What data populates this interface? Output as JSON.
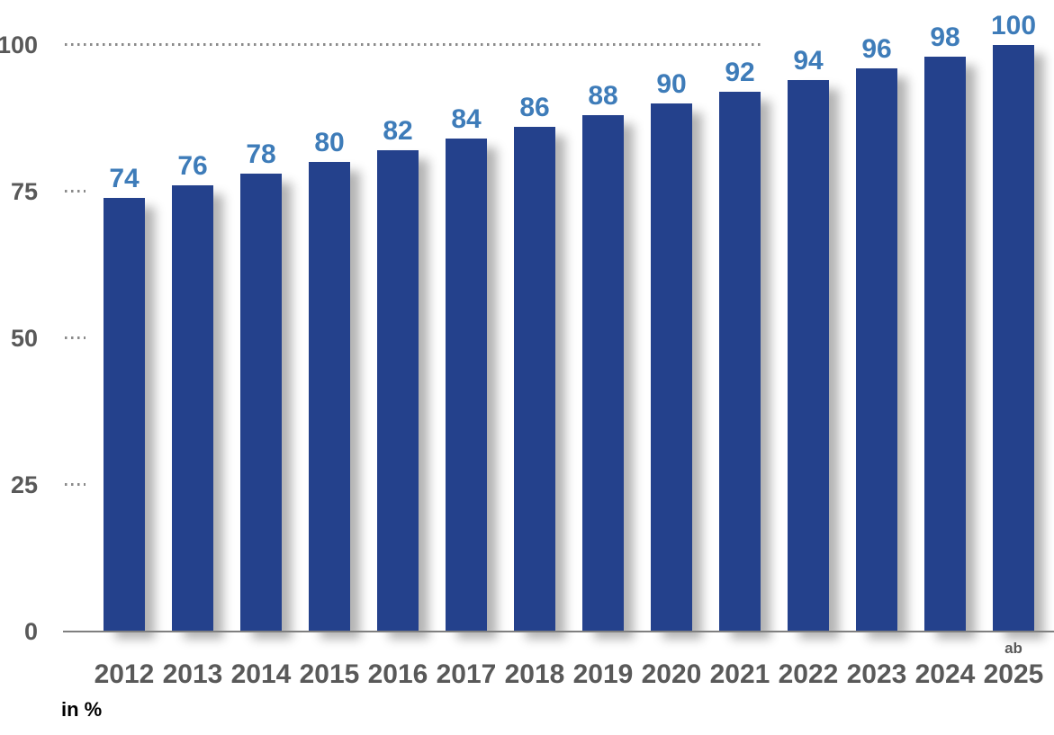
{
  "chart_data": {
    "type": "bar",
    "title": "",
    "categories": [
      "2012",
      "2013",
      "2014",
      "2015",
      "2016",
      "2017",
      "2018",
      "2019",
      "2020",
      "2021",
      "2022",
      "2023",
      "2024",
      "2025"
    ],
    "values": [
      74,
      76,
      78,
      80,
      82,
      84,
      86,
      88,
      90,
      92,
      94,
      96,
      98,
      100
    ],
    "last_category_prefix": "ab",
    "xlabel": "",
    "ylabel": "in %",
    "ylim": [
      0,
      100
    ],
    "yticks": [
      0,
      25,
      50,
      75,
      100
    ],
    "gridline_at": 100,
    "grid": "dotted line at 100 only, short dotted tick marks at 25/50/75",
    "legend": "none",
    "colors": {
      "bar": "#24418C",
      "value_label": "#3E7CB9",
      "axis_text": "#595959",
      "axis_line": "#7F7F7F",
      "grid_dots": "#8A8A8A",
      "unit_label": "#000000"
    }
  }
}
